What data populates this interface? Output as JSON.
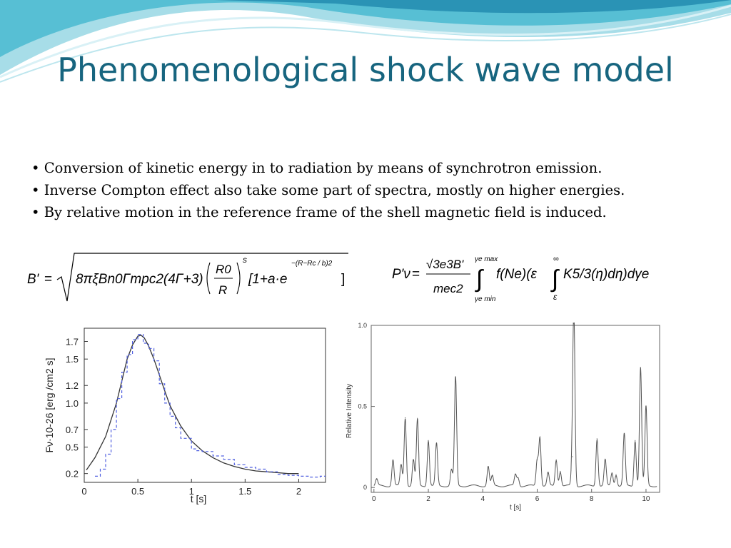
{
  "slide": {
    "title": "Phenomenological shock wave model",
    "bullets": [
      "Conversion of kinetic energy in to radiation by means of synchrotron emission.",
      "Inverse Compton effect also take some part of spectra, mostly on higher energies.",
      "By relative motion in the reference frame of the shell magnetic field is induced."
    ]
  },
  "equations": {
    "magnetic_field": {
      "lhs": "B'",
      "radicand": "8πξBn0Γmpc2(4Γ+3)",
      "fraction_num": "R0",
      "fraction_den": "R",
      "exponent": "s",
      "bracket": "[1+a·e",
      "exp_term": "−(R−Rc / b)2",
      "close": "]"
    },
    "power": {
      "lhs": "P'ν",
      "num": "√3e3B'",
      "den": "mec2",
      "int1_upper": "γe max",
      "int1_lower": "γe min",
      "int2_upper": "∞",
      "int2_lower": "ε",
      "integrand": "f(Ne)(ε",
      "inner": "K5/3(η)dη)dγe"
    }
  },
  "chart_data": [
    {
      "type": "line",
      "xlabel": "t [s]",
      "ylabel": "Fν·10-26 [erg /cm2 s]",
      "xlim": [
        0,
        2.25
      ],
      "ylim": [
        0.1,
        1.85
      ],
      "x_ticks": [
        "0",
        "0.5",
        "1",
        "1.5",
        "2"
      ],
      "y_ticks": [
        "0.2",
        "0.5",
        "0.7",
        "1.0",
        "1.2",
        "1.5",
        "1.7"
      ],
      "series": [
        {
          "style": "solid",
          "color": "#333333",
          "x": [
            0.02,
            0.1,
            0.2,
            0.3,
            0.35,
            0.4,
            0.45,
            0.5,
            0.53,
            0.56,
            0.6,
            0.65,
            0.7,
            0.75,
            0.8,
            0.9,
            1.0,
            1.1,
            1.2,
            1.3,
            1.4,
            1.5,
            1.6,
            1.7,
            1.8,
            1.9,
            2.0
          ],
          "y": [
            0.24,
            0.38,
            0.62,
            1.0,
            1.25,
            1.5,
            1.66,
            1.76,
            1.77,
            1.74,
            1.65,
            1.5,
            1.32,
            1.14,
            0.97,
            0.74,
            0.57,
            0.46,
            0.38,
            0.32,
            0.28,
            0.25,
            0.23,
            0.22,
            0.21,
            0.2,
            0.2
          ]
        },
        {
          "style": "dashed-step",
          "color": "#4f5fe0",
          "x": [
            0.1,
            0.15,
            0.2,
            0.25,
            0.3,
            0.35,
            0.4,
            0.45,
            0.5,
            0.55,
            0.6,
            0.65,
            0.7,
            0.75,
            0.8,
            0.85,
            0.9,
            1.0,
            1.05,
            1.1,
            1.2,
            1.3,
            1.4,
            1.5,
            1.6,
            1.7,
            1.8,
            1.9,
            2.0,
            2.1,
            2.2
          ],
          "y": [
            0.17,
            0.25,
            0.42,
            0.7,
            1.05,
            1.35,
            1.55,
            1.72,
            1.78,
            1.68,
            1.62,
            1.48,
            1.22,
            1.0,
            0.85,
            0.72,
            0.6,
            0.48,
            0.46,
            0.45,
            0.4,
            0.36,
            0.3,
            0.27,
            0.25,
            0.22,
            0.19,
            0.18,
            0.17,
            0.16,
            0.17
          ]
        }
      ]
    },
    {
      "type": "line",
      "xlabel": "t [s]",
      "ylabel": "Relative Intensity",
      "xlim": [
        -0.1,
        10.5
      ],
      "ylim": [
        -0.03,
        1.0
      ],
      "x_ticks": [
        "0",
        "2",
        "4",
        "6",
        "8",
        "10"
      ],
      "y_ticks": [
        "0",
        "0.5",
        "1.0"
      ],
      "baseline": 0.01,
      "pulse_width": 0.04,
      "series": [
        {
          "name": "",
          "peaks_t": [
            0.1,
            0.7,
            1.0,
            1.15,
            1.45,
            1.6,
            2.0,
            2.3,
            2.85,
            3.0,
            4.2,
            4.35,
            5.2,
            5.3,
            6.0,
            6.1,
            6.4,
            6.7,
            6.85,
            7.3,
            7.35,
            8.2,
            8.5,
            8.75,
            8.9,
            9.2,
            9.6,
            9.8,
            10.0
          ],
          "peaks_h": [
            0.04,
            0.16,
            0.13,
            0.42,
            0.16,
            0.41,
            0.28,
            0.26,
            0.1,
            0.67,
            0.12,
            0.06,
            0.07,
            0.05,
            0.16,
            0.3,
            0.08,
            0.16,
            0.09,
            0.18,
            1.0,
            0.29,
            0.16,
            0.08,
            0.07,
            0.32,
            0.28,
            0.73,
            0.49
          ]
        }
      ]
    }
  ]
}
